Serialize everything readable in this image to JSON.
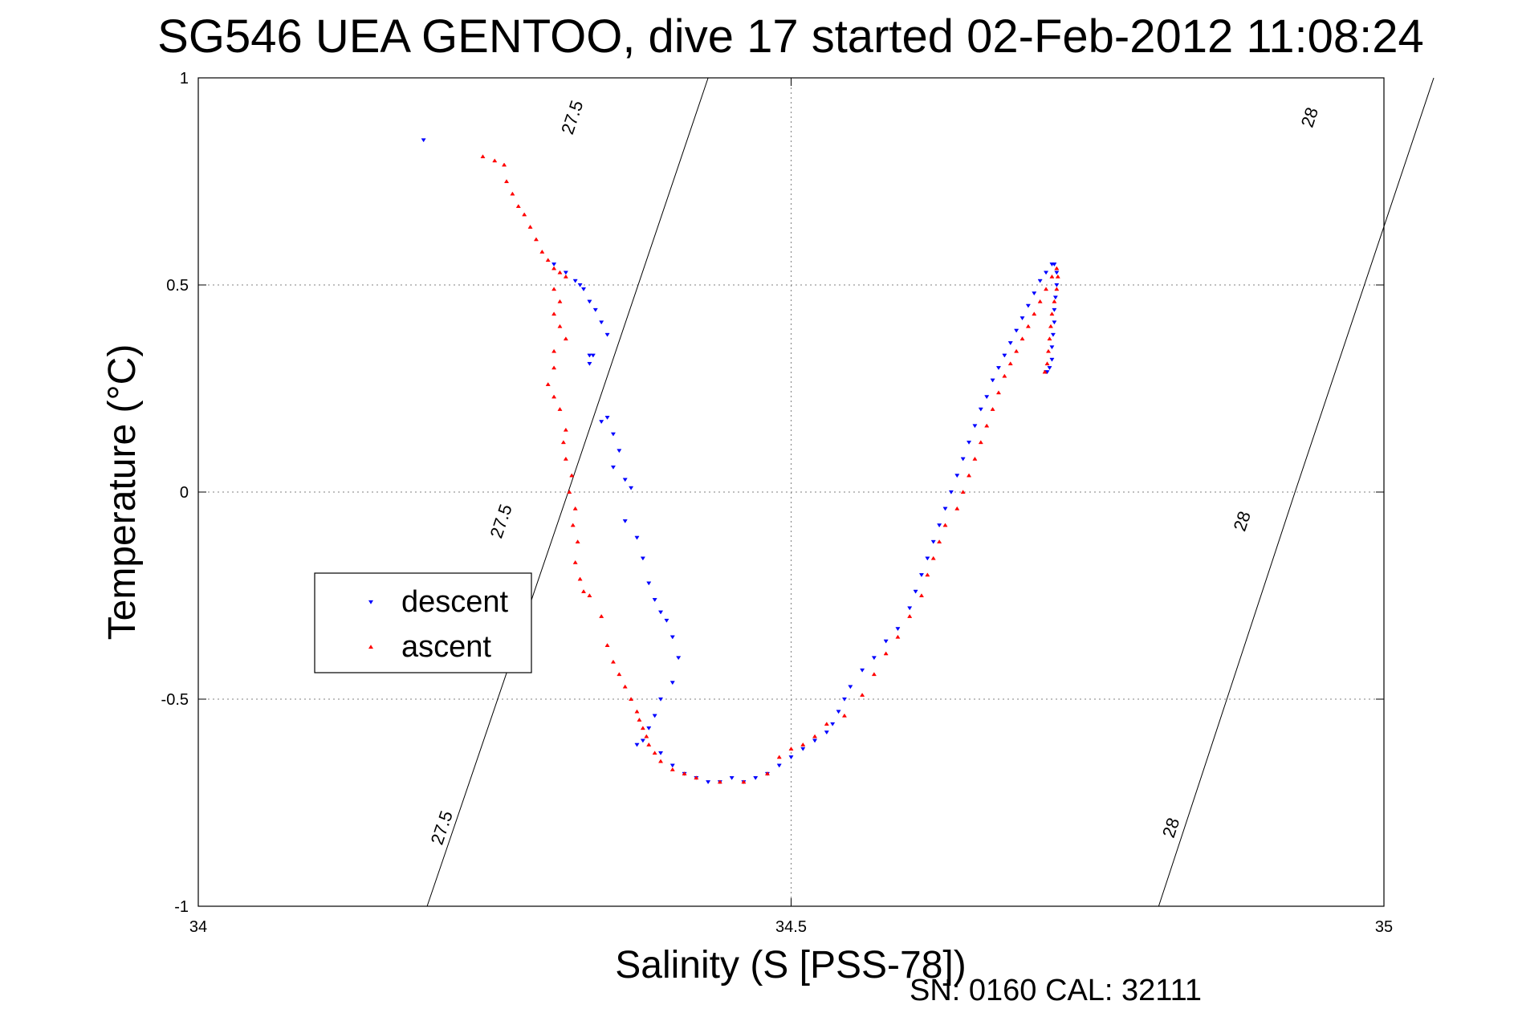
{
  "chart_data": {
    "type": "scatter",
    "title": "SG546 UEA GENTOO, dive 17 started 02-Feb-2012 11:08:24",
    "xlabel": "Salinity (S [PSS-78])",
    "ylabel": "Temperature (°C)",
    "xlim": [
      34,
      35
    ],
    "ylim": [
      -1,
      1
    ],
    "x_ticks": [
      34,
      34.5,
      35
    ],
    "x_tick_labels": [
      "34",
      "34.5",
      "35"
    ],
    "y_ticks": [
      1,
      0.5,
      0,
      -0.5,
      -1
    ],
    "y_tick_labels": [
      "1",
      "0.5",
      "0",
      "-0.5",
      "-1"
    ],
    "grid": true,
    "legend_position": "left-middle",
    "footer_text": "SN: 0160  CAL: 32111",
    "contours": [
      {
        "value": "27.5",
        "points": [
          [
            34.193,
            -1.0
          ],
          [
            34.312,
            0.0
          ],
          [
            34.43,
            1.0
          ]
        ],
        "label_positions": [
          [
            34.205,
            -0.81
          ],
          [
            34.255,
            -0.07
          ],
          [
            34.315,
            0.905
          ]
        ]
      },
      {
        "value": "28",
        "points": [
          [
            34.81,
            -1.0
          ],
          [
            34.925,
            0.0
          ],
          [
            35.042,
            1.0
          ]
        ],
        "label_positions": [
          [
            34.82,
            -0.81
          ],
          [
            34.88,
            -0.07
          ],
          [
            34.937,
            0.905
          ]
        ]
      }
    ],
    "series": [
      {
        "name": "descent",
        "color": "#0000ff",
        "marker": "triangle-down",
        "points": [
          [
            34.19,
            0.85
          ],
          [
            34.3,
            0.55
          ],
          [
            34.31,
            0.53
          ],
          [
            34.318,
            0.51
          ],
          [
            34.322,
            0.5
          ],
          [
            34.325,
            0.49
          ],
          [
            34.33,
            0.46
          ],
          [
            34.335,
            0.44
          ],
          [
            34.34,
            0.41
          ],
          [
            34.345,
            0.38
          ],
          [
            34.33,
            0.33
          ],
          [
            34.33,
            0.31
          ],
          [
            34.333,
            0.33
          ],
          [
            34.34,
            0.17
          ],
          [
            34.345,
            0.18
          ],
          [
            34.35,
            0.14
          ],
          [
            34.355,
            0.1
          ],
          [
            34.35,
            0.06
          ],
          [
            34.36,
            0.03
          ],
          [
            34.365,
            0.01
          ],
          [
            34.36,
            -0.07
          ],
          [
            34.37,
            -0.11
          ],
          [
            34.375,
            -0.16
          ],
          [
            34.38,
            -0.22
          ],
          [
            34.385,
            -0.26
          ],
          [
            34.39,
            -0.29
          ],
          [
            34.395,
            -0.31
          ],
          [
            34.4,
            -0.35
          ],
          [
            34.405,
            -0.4
          ],
          [
            34.4,
            -0.46
          ],
          [
            34.39,
            -0.5
          ],
          [
            34.385,
            -0.54
          ],
          [
            34.38,
            -0.57
          ],
          [
            34.375,
            -0.6
          ],
          [
            34.37,
            -0.61
          ],
          [
            34.39,
            -0.63
          ],
          [
            34.4,
            -0.66
          ],
          [
            34.41,
            -0.68
          ],
          [
            34.42,
            -0.69
          ],
          [
            34.43,
            -0.7
          ],
          [
            34.44,
            -0.7
          ],
          [
            34.45,
            -0.69
          ],
          [
            34.46,
            -0.7
          ],
          [
            34.47,
            -0.69
          ],
          [
            34.48,
            -0.68
          ],
          [
            34.49,
            -0.66
          ],
          [
            34.5,
            -0.64
          ],
          [
            34.51,
            -0.62
          ],
          [
            34.52,
            -0.6
          ],
          [
            34.53,
            -0.58
          ],
          [
            34.535,
            -0.56
          ],
          [
            34.54,
            -0.53
          ],
          [
            34.545,
            -0.5
          ],
          [
            34.55,
            -0.47
          ],
          [
            34.56,
            -0.43
          ],
          [
            34.57,
            -0.4
          ],
          [
            34.58,
            -0.36
          ],
          [
            34.59,
            -0.33
          ],
          [
            34.6,
            -0.28
          ],
          [
            34.605,
            -0.24
          ],
          [
            34.61,
            -0.2
          ],
          [
            34.615,
            -0.16
          ],
          [
            34.62,
            -0.12
          ],
          [
            34.625,
            -0.08
          ],
          [
            34.63,
            -0.04
          ],
          [
            34.635,
            0.0
          ],
          [
            34.64,
            0.04
          ],
          [
            34.645,
            0.08
          ],
          [
            34.65,
            0.12
          ],
          [
            34.655,
            0.16
          ],
          [
            34.66,
            0.2
          ],
          [
            34.665,
            0.23
          ],
          [
            34.67,
            0.27
          ],
          [
            34.675,
            0.3
          ],
          [
            34.68,
            0.33
          ],
          [
            34.685,
            0.36
          ],
          [
            34.69,
            0.39
          ],
          [
            34.695,
            0.42
          ],
          [
            34.7,
            0.45
          ],
          [
            34.705,
            0.48
          ],
          [
            34.71,
            0.51
          ],
          [
            34.715,
            0.53
          ],
          [
            34.72,
            0.55
          ],
          [
            34.722,
            0.55
          ],
          [
            34.724,
            0.53
          ],
          [
            34.724,
            0.5
          ],
          [
            34.723,
            0.47
          ],
          [
            34.722,
            0.44
          ],
          [
            34.722,
            0.41
          ],
          [
            34.721,
            0.38
          ],
          [
            34.72,
            0.35
          ],
          [
            34.72,
            0.32
          ],
          [
            34.718,
            0.3
          ],
          [
            34.716,
            0.29
          ],
          [
            34.715,
            0.29
          ]
        ]
      },
      {
        "name": "ascent",
        "color": "#ff0000",
        "marker": "triangle-up",
        "points": [
          [
            34.24,
            0.81
          ],
          [
            34.25,
            0.8
          ],
          [
            34.258,
            0.79
          ],
          [
            34.26,
            0.75
          ],
          [
            34.265,
            0.72
          ],
          [
            34.27,
            0.69
          ],
          [
            34.275,
            0.67
          ],
          [
            34.28,
            0.64
          ],
          [
            34.285,
            0.61
          ],
          [
            34.29,
            0.58
          ],
          [
            34.295,
            0.56
          ],
          [
            34.3,
            0.54
          ],
          [
            34.305,
            0.53
          ],
          [
            34.31,
            0.52
          ],
          [
            34.3,
            0.49
          ],
          [
            34.305,
            0.46
          ],
          [
            34.3,
            0.43
          ],
          [
            34.305,
            0.4
          ],
          [
            34.31,
            0.37
          ],
          [
            34.3,
            0.34
          ],
          [
            34.3,
            0.3
          ],
          [
            34.295,
            0.26
          ],
          [
            34.3,
            0.23
          ],
          [
            34.305,
            0.2
          ],
          [
            34.31,
            0.15
          ],
          [
            34.308,
            0.12
          ],
          [
            34.31,
            0.08
          ],
          [
            34.315,
            0.04
          ],
          [
            34.313,
            0.0
          ],
          [
            34.318,
            -0.04
          ],
          [
            34.316,
            -0.08
          ],
          [
            34.32,
            -0.12
          ],
          [
            34.318,
            -0.17
          ],
          [
            34.322,
            -0.21
          ],
          [
            34.325,
            -0.24
          ],
          [
            34.33,
            -0.25
          ],
          [
            34.34,
            -0.3
          ],
          [
            34.345,
            -0.37
          ],
          [
            34.35,
            -0.41
          ],
          [
            34.355,
            -0.44
          ],
          [
            34.36,
            -0.47
          ],
          [
            34.365,
            -0.5
          ],
          [
            34.37,
            -0.53
          ],
          [
            34.372,
            -0.55
          ],
          [
            34.375,
            -0.57
          ],
          [
            34.378,
            -0.59
          ],
          [
            34.38,
            -0.61
          ],
          [
            34.385,
            -0.63
          ],
          [
            34.39,
            -0.65
          ],
          [
            34.4,
            -0.67
          ],
          [
            34.41,
            -0.68
          ],
          [
            34.42,
            -0.69
          ],
          [
            34.44,
            -0.7
          ],
          [
            34.46,
            -0.7
          ],
          [
            34.48,
            -0.68
          ],
          [
            34.49,
            -0.64
          ],
          [
            34.5,
            -0.62
          ],
          [
            34.51,
            -0.61
          ],
          [
            34.52,
            -0.59
          ],
          [
            34.53,
            -0.56
          ],
          [
            34.545,
            -0.54
          ],
          [
            34.56,
            -0.49
          ],
          [
            34.57,
            -0.44
          ],
          [
            34.58,
            -0.39
          ],
          [
            34.59,
            -0.35
          ],
          [
            34.6,
            -0.3
          ],
          [
            34.61,
            -0.25
          ],
          [
            34.615,
            -0.2
          ],
          [
            34.62,
            -0.16
          ],
          [
            34.625,
            -0.12
          ],
          [
            34.63,
            -0.08
          ],
          [
            34.64,
            -0.04
          ],
          [
            34.645,
            0.0
          ],
          [
            34.65,
            0.04
          ],
          [
            34.655,
            0.08
          ],
          [
            34.66,
            0.12
          ],
          [
            34.665,
            0.16
          ],
          [
            34.67,
            0.2
          ],
          [
            34.675,
            0.24
          ],
          [
            34.68,
            0.28
          ],
          [
            34.685,
            0.31
          ],
          [
            34.69,
            0.34
          ],
          [
            34.695,
            0.37
          ],
          [
            34.7,
            0.4
          ],
          [
            34.705,
            0.43
          ],
          [
            34.71,
            0.46
          ],
          [
            34.715,
            0.49
          ],
          [
            34.72,
            0.52
          ],
          [
            34.724,
            0.54
          ],
          [
            34.725,
            0.52
          ],
          [
            34.724,
            0.49
          ],
          [
            34.722,
            0.46
          ],
          [
            34.72,
            0.43
          ],
          [
            34.719,
            0.4
          ],
          [
            34.718,
            0.37
          ],
          [
            34.717,
            0.34
          ],
          [
            34.716,
            0.31
          ],
          [
            34.714,
            0.29
          ]
        ]
      }
    ]
  }
}
